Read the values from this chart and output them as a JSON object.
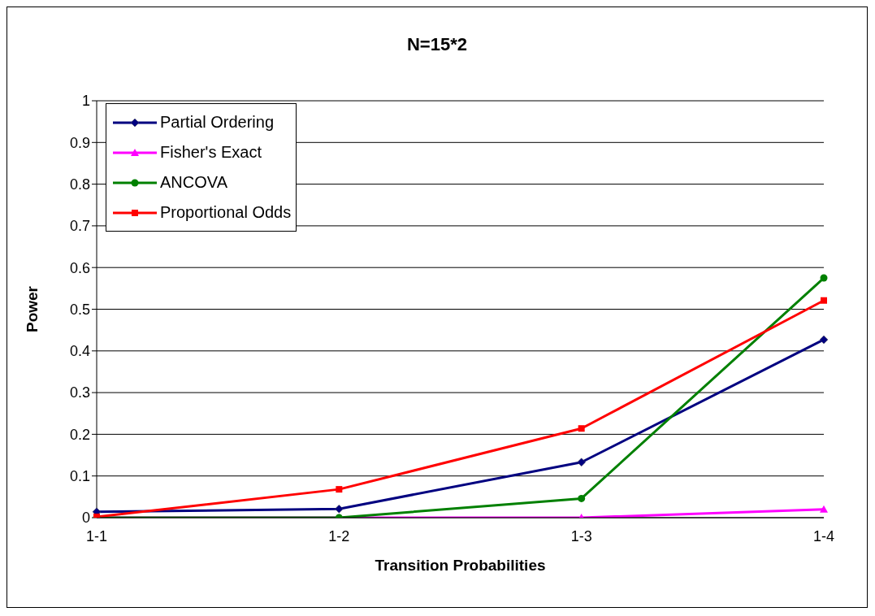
{
  "chart_data": {
    "type": "line",
    "title": "N=15*2",
    "xlabel": "Transition Probabilities",
    "ylabel": "Power",
    "categories": [
      "1-1",
      "1-2",
      "1-3",
      "1-4"
    ],
    "series": [
      {
        "name": "Partial Ordering",
        "color": "#000080",
        "marker": "diamond",
        "values": [
          0.014,
          0.021,
          0.133,
          0.427
        ]
      },
      {
        "name": "Fisher's Exact",
        "color": "#ff00ff",
        "marker": "triangle",
        "values": [
          0,
          0,
          0,
          0.02
        ]
      },
      {
        "name": "ANCOVA",
        "color": "#008000",
        "marker": "circle",
        "values": [
          0,
          0,
          0.046,
          0.575
        ]
      },
      {
        "name": "Proportional Odds",
        "color": "#ff0000",
        "marker": "square",
        "values": [
          0.002,
          0.068,
          0.214,
          0.521
        ]
      }
    ],
    "ylim": [
      0,
      1
    ],
    "yticks": [
      0,
      0.1,
      0.2,
      0.3,
      0.4,
      0.5,
      0.6,
      0.7,
      0.8,
      0.9,
      1
    ],
    "grid": "y",
    "legend": "top left",
    "line_style": "solid"
  }
}
